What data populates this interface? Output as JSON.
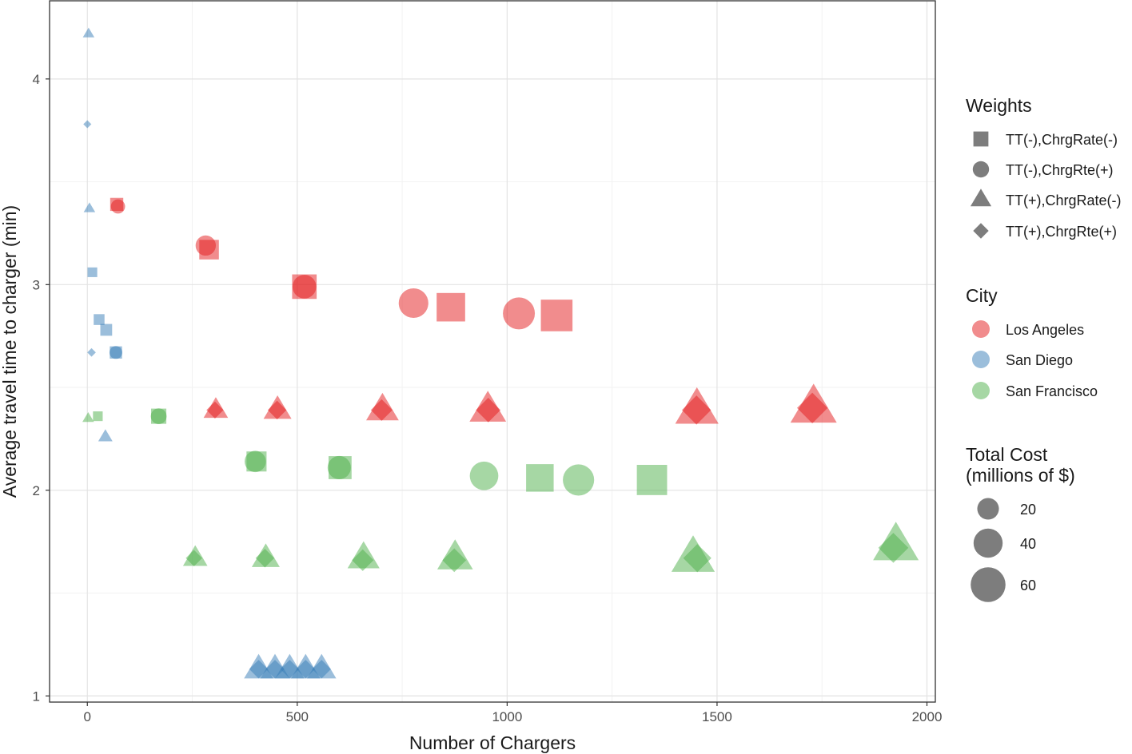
{
  "chart_data": {
    "type": "scatter",
    "xlabel": "Number of Chargers",
    "ylabel": "Average travel time to charger (min)",
    "xlim": [
      -90,
      2020
    ],
    "ylim": [
      0.97,
      4.38
    ],
    "x_ticks": [
      0,
      500,
      1000,
      1500,
      2000
    ],
    "x_tick_labels": [
      "0",
      "500",
      "1000",
      "1500",
      "2000"
    ],
    "y_ticks": [
      1,
      2,
      3,
      4
    ],
    "y_tick_labels": [
      "1",
      "2",
      "3",
      "4"
    ],
    "grid": true,
    "legend_placement": "right",
    "colors": {
      "Los Angeles": "#e41a1c",
      "San Diego": "#377eb8",
      "San Francisco": "#4daf4a"
    },
    "point_alpha": 0.5,
    "legends": {
      "weights": {
        "title": "Weights",
        "items": [
          {
            "label": "TT(-),ChrgRate(-)",
            "shape": "square"
          },
          {
            "label": "TT(-),ChrgRte(+)",
            "shape": "circle"
          },
          {
            "label": "TT(+),ChrgRate(-)",
            "shape": "triangle"
          },
          {
            "label": "TT(+),ChrgRte(+)",
            "shape": "diamond"
          }
        ]
      },
      "city": {
        "title": "City",
        "items": [
          {
            "label": "Los Angeles",
            "color": "#e41a1c"
          },
          {
            "label": "San Diego",
            "color": "#377eb8"
          },
          {
            "label": "San Francisco",
            "color": "#4daf4a"
          }
        ]
      },
      "cost": {
        "title_lines": [
          "Total Cost",
          "(millions of $)"
        ],
        "items": [
          {
            "label": "20",
            "value": 20
          },
          {
            "label": "40",
            "value": 40
          },
          {
            "label": "60",
            "value": 60
          }
        ]
      }
    },
    "series": [
      {
        "name": "Los Angeles",
        "points": [
          {
            "x": 70,
            "y": 3.39,
            "shape": "square",
            "cost": 6
          },
          {
            "x": 73,
            "y": 3.38,
            "shape": "circle",
            "cost": 6
          },
          {
            "x": 290,
            "y": 3.17,
            "shape": "square",
            "cost": 17
          },
          {
            "x": 282,
            "y": 3.19,
            "shape": "circle",
            "cost": 15
          },
          {
            "x": 517,
            "y": 2.99,
            "shape": "square",
            "cost": 29
          },
          {
            "x": 517,
            "y": 2.99,
            "shape": "circle",
            "cost": 22
          },
          {
            "x": 777,
            "y": 2.91,
            "shape": "circle",
            "cost": 37
          },
          {
            "x": 866,
            "y": 2.89,
            "shape": "square",
            "cost": 41
          },
          {
            "x": 1028,
            "y": 2.86,
            "shape": "circle",
            "cost": 44
          },
          {
            "x": 1118,
            "y": 2.85,
            "shape": "square",
            "cost": 52
          },
          {
            "x": 306,
            "y": 2.39,
            "shape": "triangle",
            "cost": 13
          },
          {
            "x": 304,
            "y": 2.39,
            "shape": "diamond",
            "cost": 11
          },
          {
            "x": 453,
            "y": 2.39,
            "shape": "triangle",
            "cost": 18
          },
          {
            "x": 452,
            "y": 2.39,
            "shape": "diamond",
            "cost": 14
          },
          {
            "x": 703,
            "y": 2.39,
            "shape": "triangle",
            "cost": 26
          },
          {
            "x": 701,
            "y": 2.39,
            "shape": "diamond",
            "cost": 20
          },
          {
            "x": 954,
            "y": 2.39,
            "shape": "triangle",
            "cost": 34
          },
          {
            "x": 955,
            "y": 2.39,
            "shape": "diamond",
            "cost": 27
          },
          {
            "x": 1452,
            "y": 2.39,
            "shape": "triangle",
            "cost": 50
          },
          {
            "x": 1451,
            "y": 2.39,
            "shape": "diamond",
            "cost": 40
          },
          {
            "x": 1730,
            "y": 2.4,
            "shape": "triangle",
            "cost": 58
          },
          {
            "x": 1727,
            "y": 2.4,
            "shape": "diamond",
            "cost": 45
          }
        ]
      },
      {
        "name": "San Diego",
        "points": [
          {
            "x": 3,
            "y": 4.22,
            "shape": "triangle",
            "cost": 1.5
          },
          {
            "x": 0,
            "y": 3.78,
            "shape": "diamond",
            "cost": 1.2
          },
          {
            "x": 5,
            "y": 3.37,
            "shape": "triangle",
            "cost": 1.5
          },
          {
            "x": 12,
            "y": 3.06,
            "shape": "square",
            "cost": 2.5
          },
          {
            "x": 28,
            "y": 2.83,
            "shape": "square",
            "cost": 3.5
          },
          {
            "x": 45,
            "y": 2.78,
            "shape": "square",
            "cost": 4.5
          },
          {
            "x": 68,
            "y": 2.67,
            "shape": "square",
            "cost": 5
          },
          {
            "x": 68,
            "y": 2.67,
            "shape": "circle",
            "cost": 4.5
          },
          {
            "x": 10,
            "y": 2.67,
            "shape": "diamond",
            "cost": 1.5
          },
          {
            "x": 43,
            "y": 2.26,
            "shape": "triangle",
            "cost": 3
          },
          {
            "x": 408,
            "y": 1.13,
            "shape": "triangle",
            "cost": 20
          },
          {
            "x": 408,
            "y": 1.13,
            "shape": "diamond",
            "cost": 14
          },
          {
            "x": 447,
            "y": 1.13,
            "shape": "triangle",
            "cost": 20
          },
          {
            "x": 447,
            "y": 1.13,
            "shape": "diamond",
            "cost": 14
          },
          {
            "x": 482,
            "y": 1.13,
            "shape": "triangle",
            "cost": 20
          },
          {
            "x": 482,
            "y": 1.13,
            "shape": "diamond",
            "cost": 14
          },
          {
            "x": 520,
            "y": 1.13,
            "shape": "triangle",
            "cost": 20
          },
          {
            "x": 520,
            "y": 1.13,
            "shape": "diamond",
            "cost": 14
          },
          {
            "x": 558,
            "y": 1.13,
            "shape": "triangle",
            "cost": 20
          },
          {
            "x": 558,
            "y": 1.13,
            "shape": "diamond",
            "cost": 14
          }
        ]
      },
      {
        "name": "San Francisco",
        "points": [
          {
            "x": 2,
            "y": 2.35,
            "shape": "triangle",
            "cost": 1.5
          },
          {
            "x": 25,
            "y": 2.36,
            "shape": "square",
            "cost": 2.5
          },
          {
            "x": 170,
            "y": 2.36,
            "shape": "square",
            "cost": 9
          },
          {
            "x": 170,
            "y": 2.36,
            "shape": "circle",
            "cost": 8
          },
          {
            "x": 403,
            "y": 2.14,
            "shape": "square",
            "cost": 18
          },
          {
            "x": 400,
            "y": 2.14,
            "shape": "circle",
            "cost": 17
          },
          {
            "x": 602,
            "y": 2.11,
            "shape": "square",
            "cost": 25
          },
          {
            "x": 600,
            "y": 2.11,
            "shape": "circle",
            "cost": 21
          },
          {
            "x": 945,
            "y": 2.07,
            "shape": "circle",
            "cost": 34
          },
          {
            "x": 1078,
            "y": 2.06,
            "shape": "square",
            "cost": 38
          },
          {
            "x": 1170,
            "y": 2.05,
            "shape": "circle",
            "cost": 42
          },
          {
            "x": 1345,
            "y": 2.05,
            "shape": "square",
            "cost": 47
          },
          {
            "x": 257,
            "y": 1.67,
            "shape": "triangle",
            "cost": 13
          },
          {
            "x": 254,
            "y": 1.67,
            "shape": "diamond",
            "cost": 10
          },
          {
            "x": 425,
            "y": 1.67,
            "shape": "triangle",
            "cost": 18
          },
          {
            "x": 423,
            "y": 1.67,
            "shape": "diamond",
            "cost": 14
          },
          {
            "x": 658,
            "y": 1.67,
            "shape": "triangle",
            "cost": 25
          },
          {
            "x": 656,
            "y": 1.66,
            "shape": "diamond",
            "cost": 20
          },
          {
            "x": 876,
            "y": 1.67,
            "shape": "triangle",
            "cost": 32
          },
          {
            "x": 874,
            "y": 1.66,
            "shape": "diamond",
            "cost": 25
          },
          {
            "x": 1443,
            "y": 1.67,
            "shape": "triangle",
            "cost": 50
          },
          {
            "x": 1453,
            "y": 1.67,
            "shape": "diamond",
            "cost": 37
          },
          {
            "x": 1926,
            "y": 1.73,
            "shape": "triangle",
            "cost": 56
          },
          {
            "x": 1920,
            "y": 1.72,
            "shape": "diamond",
            "cost": 43
          }
        ]
      }
    ]
  }
}
